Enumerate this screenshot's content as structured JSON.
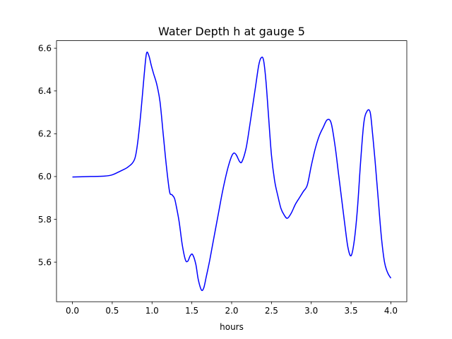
{
  "chart_data": {
    "type": "line",
    "title": "Water Depth h at gauge 5",
    "xlabel": "hours",
    "ylabel": "",
    "xlim": [
      -0.2,
      4.2
    ],
    "ylim": [
      5.415,
      6.635
    ],
    "grid": false,
    "xticks": [
      0.0,
      0.5,
      1.0,
      1.5,
      2.0,
      2.5,
      3.0,
      3.5,
      4.0
    ],
    "xtick_labels": [
      "0.0",
      "0.5",
      "1.0",
      "1.5",
      "2.0",
      "2.5",
      "3.0",
      "3.5",
      "4.0"
    ],
    "yticks": [
      5.6,
      5.8,
      6.0,
      6.2,
      6.4,
      6.6
    ],
    "ytick_labels": [
      "5.6",
      "5.8",
      "6.0",
      "6.2",
      "6.4",
      "6.6"
    ],
    "series": [
      {
        "color": "#0000ff",
        "x": [
          0.0,
          0.2,
          0.4,
          0.5,
          0.6,
          0.7,
          0.78,
          0.82,
          0.86,
          0.9,
          0.93,
          0.96,
          0.99,
          1.02,
          1.06,
          1.1,
          1.14,
          1.18,
          1.22,
          1.25,
          1.28,
          1.3,
          1.34,
          1.38,
          1.42,
          1.45,
          1.48,
          1.51,
          1.55,
          1.58,
          1.62,
          1.65,
          1.68,
          1.72,
          1.76,
          1.8,
          1.84,
          1.88,
          1.92,
          1.96,
          2.0,
          2.03,
          2.06,
          2.1,
          2.13,
          2.18,
          2.22,
          2.26,
          2.3,
          2.34,
          2.37,
          2.4,
          2.43,
          2.46,
          2.5,
          2.54,
          2.58,
          2.62,
          2.66,
          2.7,
          2.75,
          2.8,
          2.85,
          2.9,
          2.95,
          3.0,
          3.05,
          3.1,
          3.15,
          3.2,
          3.25,
          3.3,
          3.34,
          3.38,
          3.42,
          3.46,
          3.5,
          3.54,
          3.58,
          3.62,
          3.66,
          3.7,
          3.74,
          3.77,
          3.8,
          3.84,
          3.88,
          3.92,
          3.96,
          4.0
        ],
        "y": [
          5.998,
          6.0,
          6.002,
          6.008,
          6.025,
          6.045,
          6.08,
          6.16,
          6.3,
          6.47,
          6.575,
          6.565,
          6.52,
          6.48,
          6.43,
          6.35,
          6.2,
          6.05,
          5.93,
          5.915,
          5.9,
          5.87,
          5.79,
          5.68,
          5.61,
          5.605,
          5.63,
          5.635,
          5.59,
          5.52,
          5.47,
          5.48,
          5.53,
          5.6,
          5.68,
          5.76,
          5.84,
          5.92,
          5.99,
          6.05,
          6.095,
          6.11,
          6.1,
          6.07,
          6.07,
          6.13,
          6.22,
          6.32,
          6.42,
          6.52,
          6.555,
          6.545,
          6.45,
          6.3,
          6.1,
          5.98,
          5.91,
          5.85,
          5.82,
          5.805,
          5.83,
          5.87,
          5.9,
          5.93,
          5.96,
          6.05,
          6.13,
          6.19,
          6.23,
          6.265,
          6.25,
          6.14,
          6.02,
          5.9,
          5.78,
          5.67,
          5.63,
          5.7,
          5.85,
          6.07,
          6.25,
          6.305,
          6.3,
          6.2,
          6.08,
          5.9,
          5.72,
          5.6,
          5.55,
          5.525
        ]
      }
    ]
  }
}
